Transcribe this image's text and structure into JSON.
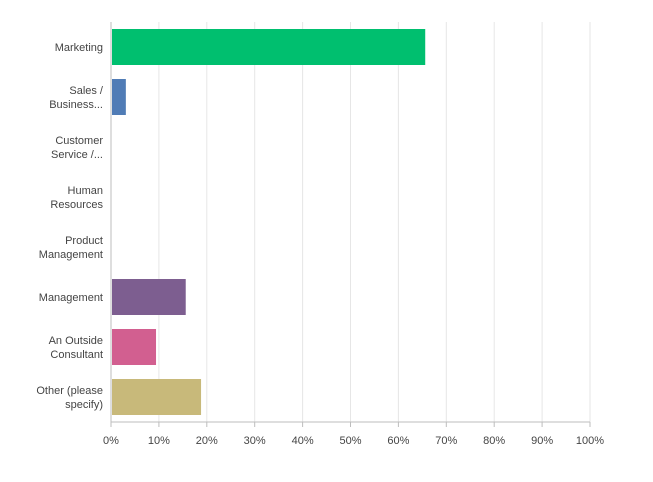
{
  "chart_data": {
    "type": "bar",
    "orientation": "horizontal",
    "categories": [
      [
        "Marketing"
      ],
      [
        "Sales /",
        "Business..."
      ],
      [
        "Customer",
        "Service /..."
      ],
      [
        "Human",
        "Resources"
      ],
      [
        "Product",
        "Management"
      ],
      [
        "Management"
      ],
      [
        "An Outside",
        "Consultant"
      ],
      [
        "Other (please",
        "specify)"
      ]
    ],
    "values": [
      65.6,
      3.1,
      0,
      0,
      0,
      15.6,
      9.4,
      18.8
    ],
    "colors": [
      "#00bf6f",
      "#507cb6",
      "#6bc8cd",
      "#f9be00",
      "#0b7a8a",
      "#7d5e90",
      "#d25f90",
      "#c8b97a"
    ],
    "xlim": [
      0,
      100
    ],
    "xticks": [
      "0%",
      "10%",
      "20%",
      "30%",
      "40%",
      "50%",
      "60%",
      "70%",
      "80%",
      "90%",
      "100%"
    ],
    "grid": true,
    "title": "",
    "xlabel": "",
    "ylabel": ""
  }
}
